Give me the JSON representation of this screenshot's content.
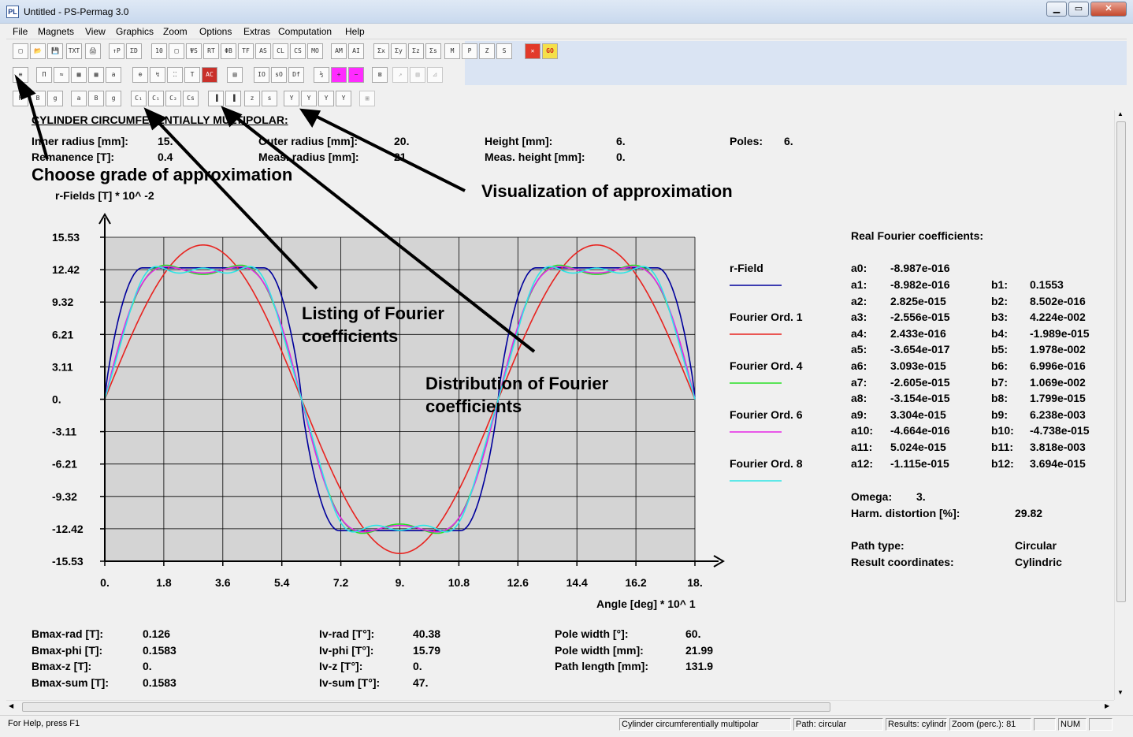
{
  "window": {
    "title": "Untitled - PS-Permag 3.0",
    "icon_text": "PL",
    "minimize": "▁",
    "maximize": "▭",
    "close": "✕"
  },
  "menu": [
    "File",
    "Magnets",
    "View",
    "Graphics",
    "Zoom",
    "Options",
    "Extras",
    "Computation",
    "Help"
  ],
  "heading": "CYLINDER CIRCUMFERENTIALLY MULTIPOLAR:",
  "params": {
    "inner_radius_label": "Inner radius [mm]:",
    "inner_radius": "15.",
    "outer_radius_label": "Outer radius [mm]:",
    "outer_radius": "20.",
    "height_label": "Height [mm]:",
    "height": "6.",
    "poles_label": "Poles:",
    "poles": "6.",
    "remanence_label": "Remanence [T]:",
    "remanence": "0.4",
    "meas_radius_label": "Meas. radius [mm]:",
    "meas_radius": "21",
    "meas_height_label": "Meas. height [mm]:",
    "meas_height": "0."
  },
  "annotations": {
    "choose": "Choose grade of approximation",
    "visualization": "Visualization of approximation",
    "listing": [
      "Listing of Fourier",
      "coefficients"
    ],
    "distribution": [
      "Distribution of Fourier",
      "coefficients"
    ]
  },
  "chart_data": {
    "type": "line",
    "ylabel": "r-Fields [T] * 10^ -2",
    "xlabel": "Angle [deg] * 10^ 1",
    "x_ticks": [
      "0.",
      "1.8",
      "3.6",
      "5.4",
      "7.2",
      "9.",
      "10.8",
      "12.6",
      "14.4",
      "16.2",
      "18."
    ],
    "y_ticks": [
      "15.53",
      "12.42",
      "9.32",
      "6.21",
      "3.11",
      "0.",
      "-3.11",
      "-6.21",
      "-9.32",
      "-12.42",
      "-15.53"
    ],
    "xlim": [
      0,
      18
    ],
    "ylim": [
      -15.53,
      15.53
    ],
    "plateau": 12.6,
    "series": [
      {
        "name": "r-Field",
        "color": "#00009c",
        "order": 0
      },
      {
        "name": "Fourier Ord. 1",
        "color": "#e8231f",
        "order": 1
      },
      {
        "name": "Fourier Ord. 4",
        "color": "#27e022",
        "order": 4
      },
      {
        "name": "Fourier Ord. 6",
        "color": "#e524e5",
        "order": 6
      },
      {
        "name": "Fourier Ord. 8",
        "color": "#2ee6e6",
        "order": 8
      }
    ]
  },
  "fourier": {
    "title": "Real Fourier coefficients:",
    "a0_label": "a0:",
    "a0": "-8.987e-016",
    "rows": [
      {
        "al": "a1:",
        "a": "-8.982e-016",
        "bl": "b1:",
        "b": "0.1553"
      },
      {
        "al": "a2:",
        "a": "2.825e-015",
        "bl": "b2:",
        "b": "8.502e-016"
      },
      {
        "al": "a3:",
        "a": "-2.556e-015",
        "bl": "b3:",
        "b": "4.224e-002"
      },
      {
        "al": "a4:",
        "a": "2.433e-016",
        "bl": "b4:",
        "b": "-1.989e-015"
      },
      {
        "al": "a5:",
        "a": "-3.654e-017",
        "bl": "b5:",
        "b": "1.978e-002"
      },
      {
        "al": "a6:",
        "a": "3.093e-015",
        "bl": "b6:",
        "b": "6.996e-016"
      },
      {
        "al": "a7:",
        "a": "-2.605e-015",
        "bl": "b7:",
        "b": "1.069e-002"
      },
      {
        "al": "a8:",
        "a": "-3.154e-015",
        "bl": "b8:",
        "b": "1.799e-015"
      },
      {
        "al": "a9:",
        "a": "3.304e-015",
        "bl": "b9:",
        "b": "6.238e-003"
      },
      {
        "al": "a10:",
        "a": "-4.664e-016",
        "bl": "b10:",
        "b": "-4.738e-015"
      },
      {
        "al": "a11:",
        "a": "5.024e-015",
        "bl": "b11:",
        "b": "3.818e-003"
      },
      {
        "al": "a12:",
        "a": "-1.115e-015",
        "bl": "b12:",
        "b": "3.694e-015"
      }
    ],
    "omega_label": "Omega:",
    "omega": "3.",
    "harm_label": "Harm. distortion [%]:",
    "harm": "29.82",
    "path_label": "Path type:",
    "path": "Circular",
    "result_label": "Result coordinates:",
    "result": "Cylindric"
  },
  "results": {
    "bmax_rad_label": "Bmax-rad [T]:",
    "bmax_rad": "0.126",
    "bmax_phi_label": "Bmax-phi [T]:",
    "bmax_phi": "0.1583",
    "bmax_z_label": "Bmax-z [T]:",
    "bmax_z": "0.",
    "bmax_sum_label": "Bmax-sum [T]:",
    "bmax_sum": "0.1583",
    "iv_rad_label": "Iv-rad [T°]:",
    "iv_rad": "40.38",
    "iv_phi_label": "Iv-phi [T°]:",
    "iv_phi": "15.79",
    "iv_z_label": "Iv-z [T°]:",
    "iv_z": "0.",
    "iv_sum_label": "Iv-sum [T°]:",
    "iv_sum": "47.",
    "pole_width_deg_label": "Pole width [°]:",
    "pole_width_deg": "60.",
    "pole_width_mm_label": "Pole width [mm]:",
    "pole_width_mm": "21.99",
    "path_length_label": "Path length [mm]:",
    "path_length": "131.9"
  },
  "status": {
    "help": "For Help, press F1",
    "mode": "Cylinder circumferentially multipolar",
    "path": "Path: circular",
    "results": "Results: cylindric",
    "zoom": "Zoom (perc.): 81",
    "num": "NUM"
  },
  "toolbar1": [
    "□",
    "📂",
    "💾",
    "TXT",
    "🖨",
    "↑P",
    "ΣD",
    "10",
    "□",
    "ΨS",
    "RT",
    "ΦB",
    "TF",
    "AS",
    "CL",
    "CS",
    "MO",
    "AM",
    "AI",
    "Σx",
    "Σy",
    "Σz",
    "Σs",
    "M",
    "P",
    "Z",
    "S",
    "✕",
    "GO"
  ],
  "toolbar2": [
    "≡",
    "Π",
    "≈",
    "▦",
    "▦",
    "a",
    "⊕",
    "↯",
    "⁚⁚",
    "T",
    "AC",
    "▤",
    "IO",
    "sO",
    "Df",
    "½",
    "+",
    "−",
    "⊠",
    "↗",
    "▥",
    "⊿"
  ],
  "toolbar3": [
    "H",
    "B",
    "g",
    "a",
    "B",
    "g",
    "C₁",
    "C₁",
    "C₂",
    "Cs",
    "▐",
    "▐",
    "z",
    "s",
    "Y",
    "Y",
    "Y",
    "Y",
    "▣"
  ]
}
